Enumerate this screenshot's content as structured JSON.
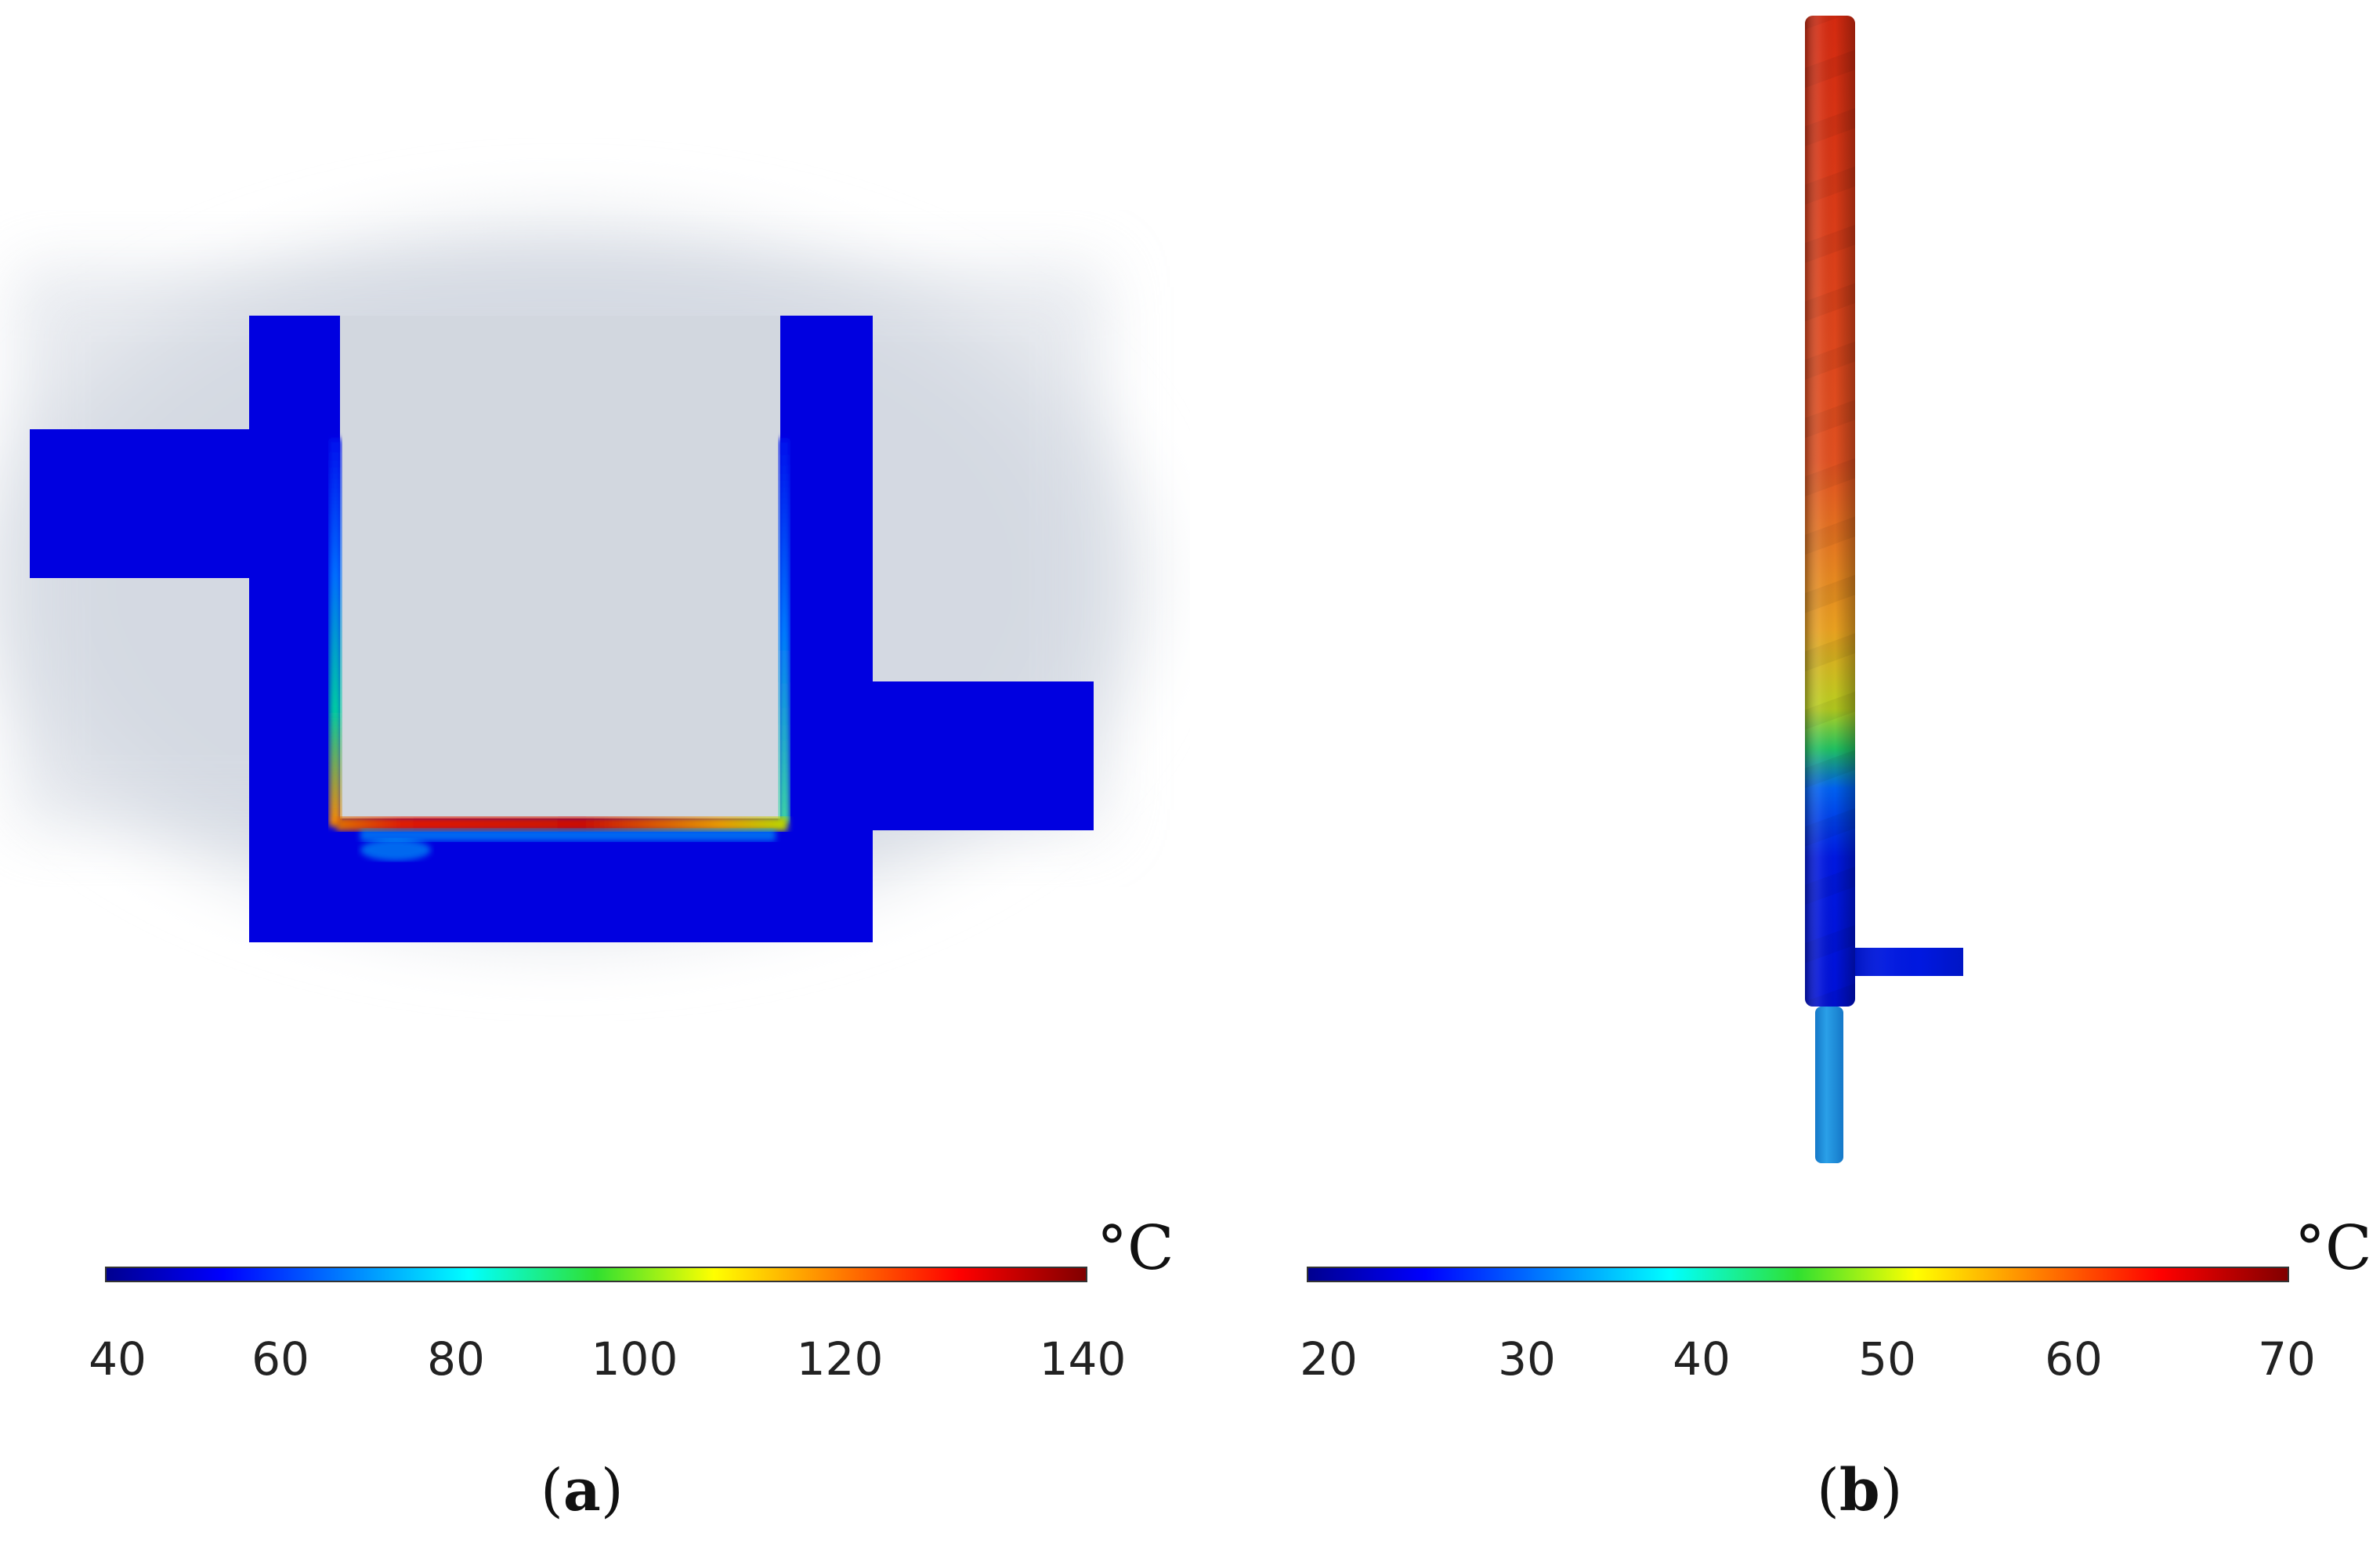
{
  "panels": [
    {
      "id": "a",
      "label": "a",
      "colorbar": {
        "unit": "°C",
        "ticks": [
          "40",
          "60",
          "80",
          "100",
          "120",
          "140"
        ],
        "min": 40,
        "max": 140
      }
    },
    {
      "id": "b",
      "label": "b",
      "colorbar": {
        "unit": "°C",
        "ticks": [
          "20",
          "30",
          "40",
          "50",
          "60",
          "70"
        ],
        "min": 20,
        "max": 70
      }
    }
  ],
  "colors": {
    "field_blue": "#0000dd",
    "hot_red": "#cc1a00",
    "background_gray": "#d4d9e2",
    "inlet_cyan": "#1f8ed8"
  }
}
